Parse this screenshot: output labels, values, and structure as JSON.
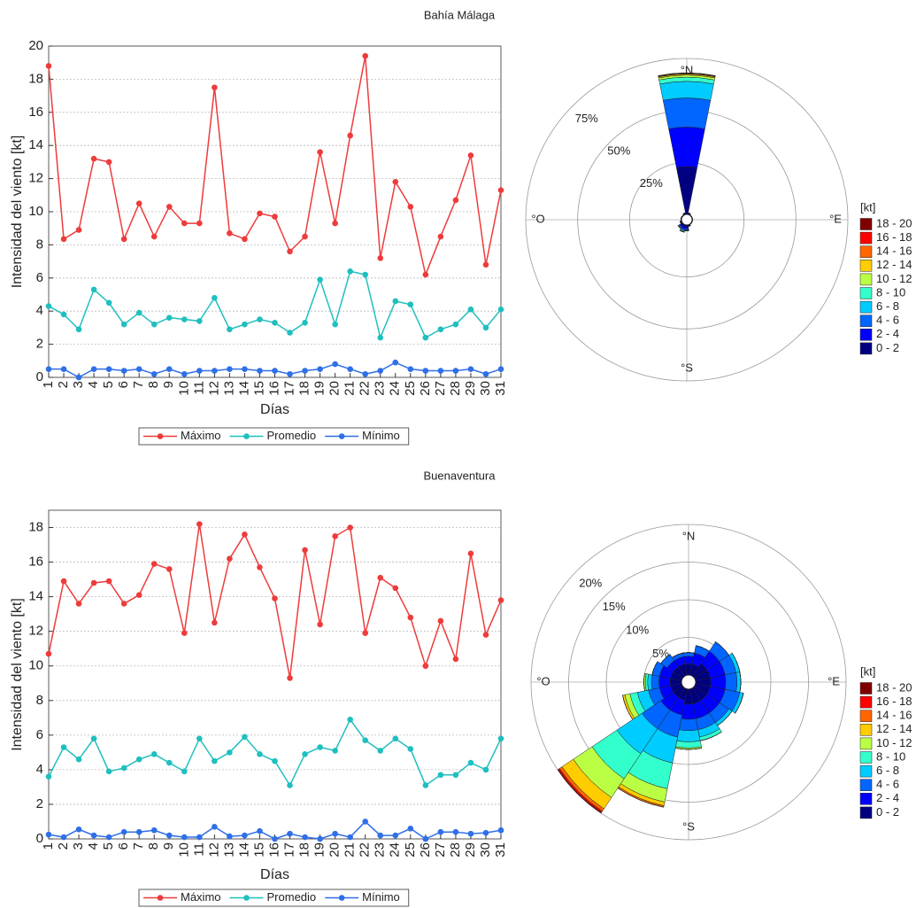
{
  "chart_data": [
    {
      "type": "line",
      "title": "Bahía Málaga",
      "xlabel": "Días",
      "ylabel": "Intensidad del viento [kt]",
      "x": [
        1,
        2,
        3,
        4,
        5,
        6,
        7,
        8,
        9,
        10,
        11,
        12,
        13,
        14,
        15,
        16,
        17,
        18,
        19,
        20,
        21,
        22,
        23,
        24,
        25,
        26,
        27,
        28,
        29,
        30,
        31
      ],
      "xlim": [
        1,
        31
      ],
      "xticks": [
        1,
        2,
        3,
        4,
        5,
        6,
        7,
        8,
        9,
        10,
        11,
        12,
        13,
        14,
        15,
        16,
        17,
        18,
        19,
        20,
        21,
        22,
        23,
        24,
        25,
        26,
        27,
        28,
        29,
        30,
        31
      ],
      "ylim": [
        0,
        20
      ],
      "yticks": [
        0,
        2,
        4,
        6,
        8,
        10,
        12,
        14,
        16,
        18,
        20
      ],
      "grid": true,
      "series": [
        {
          "name": "Máximo",
          "color": "#ee3b3b",
          "values": [
            18.8,
            8.35,
            8.9,
            13.2,
            13.0,
            8.35,
            10.5,
            8.5,
            10.3,
            9.3,
            9.3,
            17.5,
            8.7,
            8.35,
            9.9,
            9.7,
            7.6,
            8.5,
            13.6,
            9.3,
            14.6,
            19.4,
            7.2,
            11.8,
            10.3,
            6.2,
            8.5,
            10.7,
            13.4,
            6.8,
            11.3
          ]
        },
        {
          "name": "Promedio",
          "color": "#1fbfbf",
          "values": [
            4.3,
            3.8,
            2.9,
            5.3,
            4.5,
            3.2,
            3.9,
            3.2,
            3.6,
            3.5,
            3.4,
            4.8,
            2.9,
            3.2,
            3.5,
            3.3,
            2.7,
            3.3,
            5.9,
            3.2,
            6.4,
            6.2,
            2.4,
            4.6,
            4.4,
            2.4,
            2.9,
            3.2,
            4.1,
            3.0,
            4.1
          ]
        },
        {
          "name": "Mínimo",
          "color": "#2f6fe8",
          "values": [
            0.5,
            0.5,
            0,
            0.5,
            0.5,
            0.4,
            0.5,
            0.2,
            0.5,
            0.2,
            0.4,
            0.4,
            0.5,
            0.5,
            0.4,
            0.4,
            0.2,
            0.4,
            0.5,
            0.8,
            0.5,
            0.2,
            0.4,
            0.9,
            0.5,
            0.4,
            0.4,
            0.4,
            0.5,
            0.2,
            0.5
          ]
        }
      ]
    },
    {
      "type": "windrose",
      "directions": [
        0,
        22.5,
        45,
        67.5,
        90,
        112.5,
        135,
        157.5,
        180,
        202.5,
        225,
        247.5,
        270,
        292.5,
        315,
        337.5
      ],
      "direction_labels": [
        "°N",
        "°E",
        "°S",
        "°O"
      ],
      "rlim": [
        0,
        75
      ],
      "rticks": [
        {
          "value": 25,
          "label": "25%"
        },
        {
          "value": 50,
          "label": "50%"
        },
        {
          "value": 75,
          "label": "75%"
        }
      ],
      "legend_title": "[kt]",
      "series": [
        {
          "name": "0 - 2",
          "color": "#000080",
          "values": [
            23,
            0.5,
            0.3,
            0.2,
            0.2,
            0.2,
            0.3,
            0.5,
            1,
            1,
            0.8,
            0.5,
            0.3,
            0.3,
            0.3,
            0.5
          ]
        },
        {
          "name": "2 - 4",
          "color": "#0000ff",
          "values": [
            19,
            0.3,
            0,
            0,
            0,
            0,
            0,
            0.3,
            0.8,
            1,
            0.8,
            0.3,
            0,
            0,
            0,
            0.3
          ]
        },
        {
          "name": "4 - 6",
          "color": "#0066ff",
          "values": [
            14,
            0,
            0,
            0,
            0,
            0,
            0,
            0,
            0.5,
            0.8,
            0.5,
            0,
            0,
            0,
            0,
            0
          ]
        },
        {
          "name": "6 - 8",
          "color": "#00ccff",
          "values": [
            8,
            0,
            0,
            0,
            0,
            0,
            0,
            0,
            0.3,
            0.5,
            0.3,
            0,
            0,
            0,
            0,
            0
          ]
        },
        {
          "name": "8 - 10",
          "color": "#33ffcc",
          "values": [
            2,
            0,
            0,
            0,
            0,
            0,
            0,
            0,
            0.2,
            0.3,
            0.2,
            0,
            0,
            0,
            0,
            0
          ]
        },
        {
          "name": "10 - 12",
          "color": "#bbff44",
          "values": [
            1,
            0,
            0,
            0,
            0,
            0,
            0,
            0,
            0,
            0,
            0,
            0,
            0,
            0,
            0,
            0
          ]
        },
        {
          "name": "12 - 14",
          "color": "#ffcc00",
          "values": [
            0.5,
            0,
            0,
            0,
            0,
            0,
            0,
            0,
            0,
            0,
            0,
            0,
            0,
            0,
            0,
            0
          ]
        },
        {
          "name": "14 - 16",
          "color": "#ff6600",
          "values": [
            0.3,
            0,
            0,
            0,
            0,
            0,
            0,
            0,
            0,
            0,
            0,
            0,
            0,
            0,
            0,
            0
          ]
        },
        {
          "name": "16 - 18",
          "color": "#ff0000",
          "values": [
            0.2,
            0,
            0,
            0,
            0,
            0,
            0,
            0,
            0,
            0,
            0,
            0,
            0,
            0,
            0,
            0
          ]
        },
        {
          "name": "18 - 20",
          "color": "#800000",
          "values": [
            0.1,
            0,
            0,
            0,
            0,
            0,
            0,
            0,
            0,
            0,
            0,
            0,
            0,
            0,
            0,
            0
          ]
        }
      ]
    },
    {
      "type": "line",
      "title": "Buenaventura",
      "xlabel": "Días",
      "ylabel": "Intensidad del viento [kt]",
      "x": [
        1,
        2,
        3,
        4,
        5,
        6,
        7,
        8,
        9,
        10,
        11,
        12,
        13,
        14,
        15,
        16,
        17,
        18,
        19,
        20,
        21,
        22,
        23,
        24,
        25,
        26,
        27,
        28,
        29,
        30,
        31
      ],
      "xlim": [
        1,
        31
      ],
      "xticks": [
        1,
        2,
        3,
        4,
        5,
        6,
        7,
        8,
        9,
        10,
        11,
        12,
        13,
        14,
        15,
        16,
        17,
        18,
        19,
        20,
        21,
        22,
        23,
        24,
        25,
        26,
        27,
        28,
        29,
        30,
        31
      ],
      "ylim": [
        0,
        19
      ],
      "yticks": [
        0,
        2,
        4,
        6,
        8,
        10,
        12,
        14,
        16,
        18
      ],
      "grid": true,
      "series": [
        {
          "name": "Máximo",
          "color": "#ee3b3b",
          "values": [
            10.7,
            14.9,
            13.6,
            14.8,
            14.9,
            13.6,
            14.1,
            15.9,
            15.6,
            11.9,
            18.2,
            12.5,
            16.2,
            17.6,
            15.7,
            13.9,
            9.3,
            16.7,
            12.4,
            17.5,
            18.0,
            11.9,
            15.1,
            14.5,
            12.8,
            10.0,
            12.6,
            10.4,
            16.5,
            11.8,
            13.8
          ]
        },
        {
          "name": "Promedio",
          "color": "#1fbfbf",
          "values": [
            3.6,
            5.3,
            4.6,
            5.8,
            3.9,
            4.1,
            4.6,
            4.9,
            4.4,
            3.9,
            5.8,
            4.5,
            5.0,
            5.9,
            4.9,
            4.5,
            3.1,
            4.9,
            5.3,
            5.1,
            6.9,
            5.7,
            5.1,
            5.8,
            5.2,
            3.1,
            3.7,
            3.7,
            4.4,
            4.0,
            5.8
          ]
        },
        {
          "name": "Mínimo",
          "color": "#2f6fe8",
          "values": [
            0.25,
            0.1,
            0.55,
            0.2,
            0.1,
            0.4,
            0.4,
            0.5,
            0.2,
            0.1,
            0.1,
            0.7,
            0.15,
            0.2,
            0.45,
            0,
            0.3,
            0.1,
            0,
            0.3,
            0.1,
            1.0,
            0.2,
            0.2,
            0.6,
            0,
            0.4,
            0.4,
            0.3,
            0.35,
            0.5
          ]
        }
      ]
    },
    {
      "type": "windrose",
      "directions": [
        0,
        22.5,
        45,
        67.5,
        90,
        112.5,
        135,
        157.5,
        180,
        202.5,
        225,
        247.5,
        270,
        292.5,
        315,
        337.5
      ],
      "direction_labels": [
        "°N",
        "°E",
        "°S",
        "°O"
      ],
      "rlim": [
        0,
        20
      ],
      "rticks": [
        {
          "value": 5,
          "label": "5%"
        },
        {
          "value": 10,
          "label": "10%"
        },
        {
          "value": 15,
          "label": "15%"
        },
        {
          "value": 20,
          "label": "20%"
        }
      ],
      "legend_title": "[kt]",
      "series": [
        {
          "name": "0 - 2",
          "color": "#000080",
          "values": [
            1.5,
            1.5,
            2,
            2,
            2,
            2,
            2,
            2,
            2,
            1.5,
            1.5,
            1.5,
            1.5,
            1.5,
            1.5,
            1.5
          ]
        },
        {
          "name": "2 - 4",
          "color": "#0000ff",
          "values": [
            1,
            1.5,
            2,
            2,
            2,
            2,
            2,
            2,
            2,
            2,
            2,
            1.5,
            1.5,
            1.5,
            1,
            1
          ]
        },
        {
          "name": "4 - 6",
          "color": "#0066ff",
          "values": [
            0.5,
            1,
            1.5,
            1.5,
            1.5,
            2,
            1.5,
            1.5,
            1.5,
            3,
            3,
            1.5,
            1,
            1,
            1,
            0.5
          ]
        },
        {
          "name": "6 - 8",
          "color": "#00ccff",
          "values": [
            0,
            0,
            0,
            0.5,
            0.5,
            0.5,
            0.5,
            1,
            1.5,
            3.5,
            4,
            1.5,
            0.5,
            0,
            0,
            0
          ]
        },
        {
          "name": "8 - 10",
          "color": "#33ffcc",
          "values": [
            0,
            0,
            0,
            0,
            0,
            0,
            0,
            0.5,
            0.8,
            3.5,
            4,
            1,
            0.3,
            0,
            0,
            0
          ]
        },
        {
          "name": "10 - 12",
          "color": "#bbff44",
          "values": [
            0,
            0,
            0,
            0,
            0,
            0,
            0,
            0,
            0.2,
            1.8,
            3,
            0.7,
            0.2,
            0,
            0,
            0
          ]
        },
        {
          "name": "12 - 14",
          "color": "#ffcc00",
          "values": [
            0,
            0,
            0,
            0,
            0,
            0,
            0,
            0,
            0,
            0.5,
            1.8,
            0.3,
            0,
            0,
            0,
            0
          ]
        },
        {
          "name": "14 - 16",
          "color": "#ff6600",
          "values": [
            0,
            0,
            0,
            0,
            0,
            0,
            0,
            0,
            0,
            0.2,
            0.4,
            0,
            0,
            0,
            0,
            0
          ]
        },
        {
          "name": "16 - 18",
          "color": "#ff0000",
          "values": [
            0,
            0,
            0,
            0,
            0,
            0,
            0,
            0,
            0,
            0,
            0.2,
            0,
            0,
            0,
            0,
            0
          ]
        },
        {
          "name": "18 - 20",
          "color": "#800000",
          "values": [
            0,
            0,
            0,
            0,
            0,
            0,
            0,
            0,
            0,
            0,
            0.1,
            0,
            0,
            0,
            0,
            0
          ]
        }
      ]
    }
  ]
}
